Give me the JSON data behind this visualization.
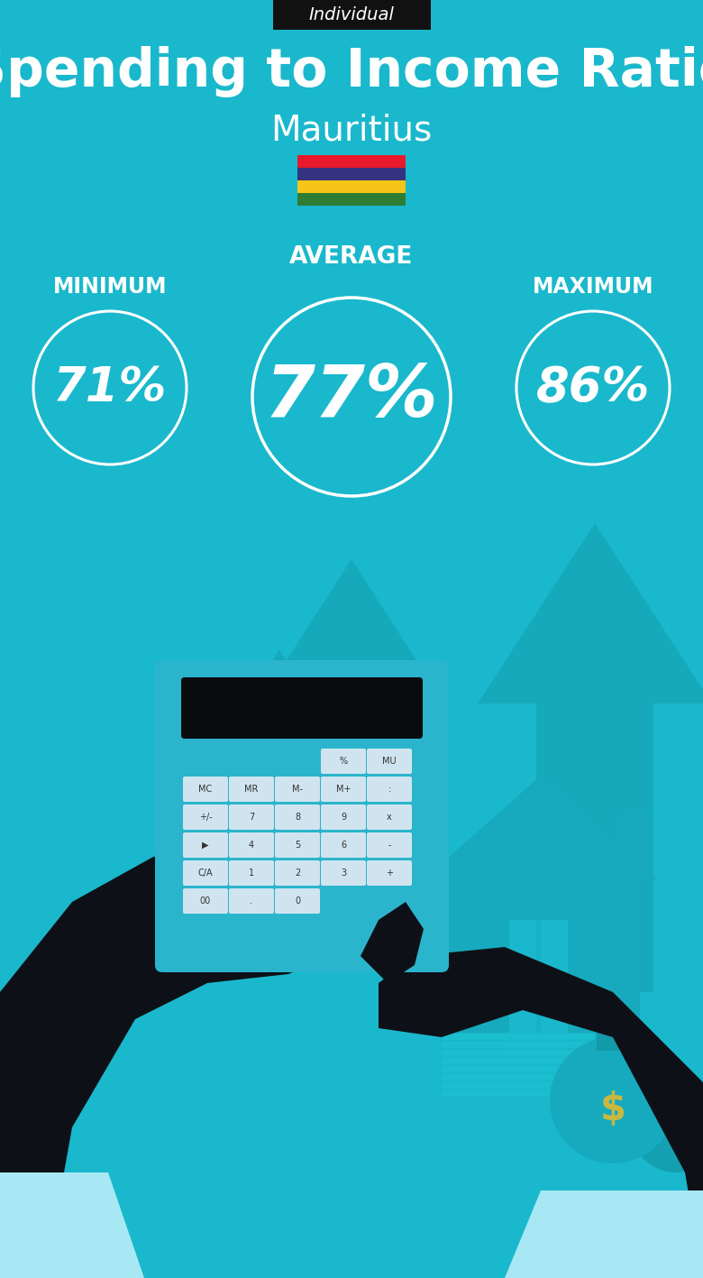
{
  "bg_color": "#1ab8cc",
  "title_tag": "Individual",
  "title_tag_bg": "#111111",
  "title_tag_color": "#ffffff",
  "title_main": "Spending to Income Ratio",
  "title_sub": "Mauritius",
  "title_main_color": "#ffffff",
  "title_sub_color": "#ffffff",
  "label_min": "MINIMUM",
  "label_avg": "AVERAGE",
  "label_max": "MAXIMUM",
  "val_min": "71%",
  "val_avg": "77%",
  "val_max": "86%",
  "circle_color": "#ffffff",
  "val_color": "#ffffff",
  "label_color": "#ffffff",
  "flag_colors": [
    "#e8192c",
    "#353280",
    "#f5c518",
    "#2e7d32"
  ],
  "arrow_color": "#16a9bc",
  "house_color": "#17aabe",
  "hand_color": "#0d1117",
  "cuff_color": "#a8e8f5",
  "calc_color": "#2ab5cc",
  "calc_display_color": "#080c0e",
  "btn_color": "#d0e4ef",
  "fig_width": 7.8,
  "fig_height": 14.17
}
